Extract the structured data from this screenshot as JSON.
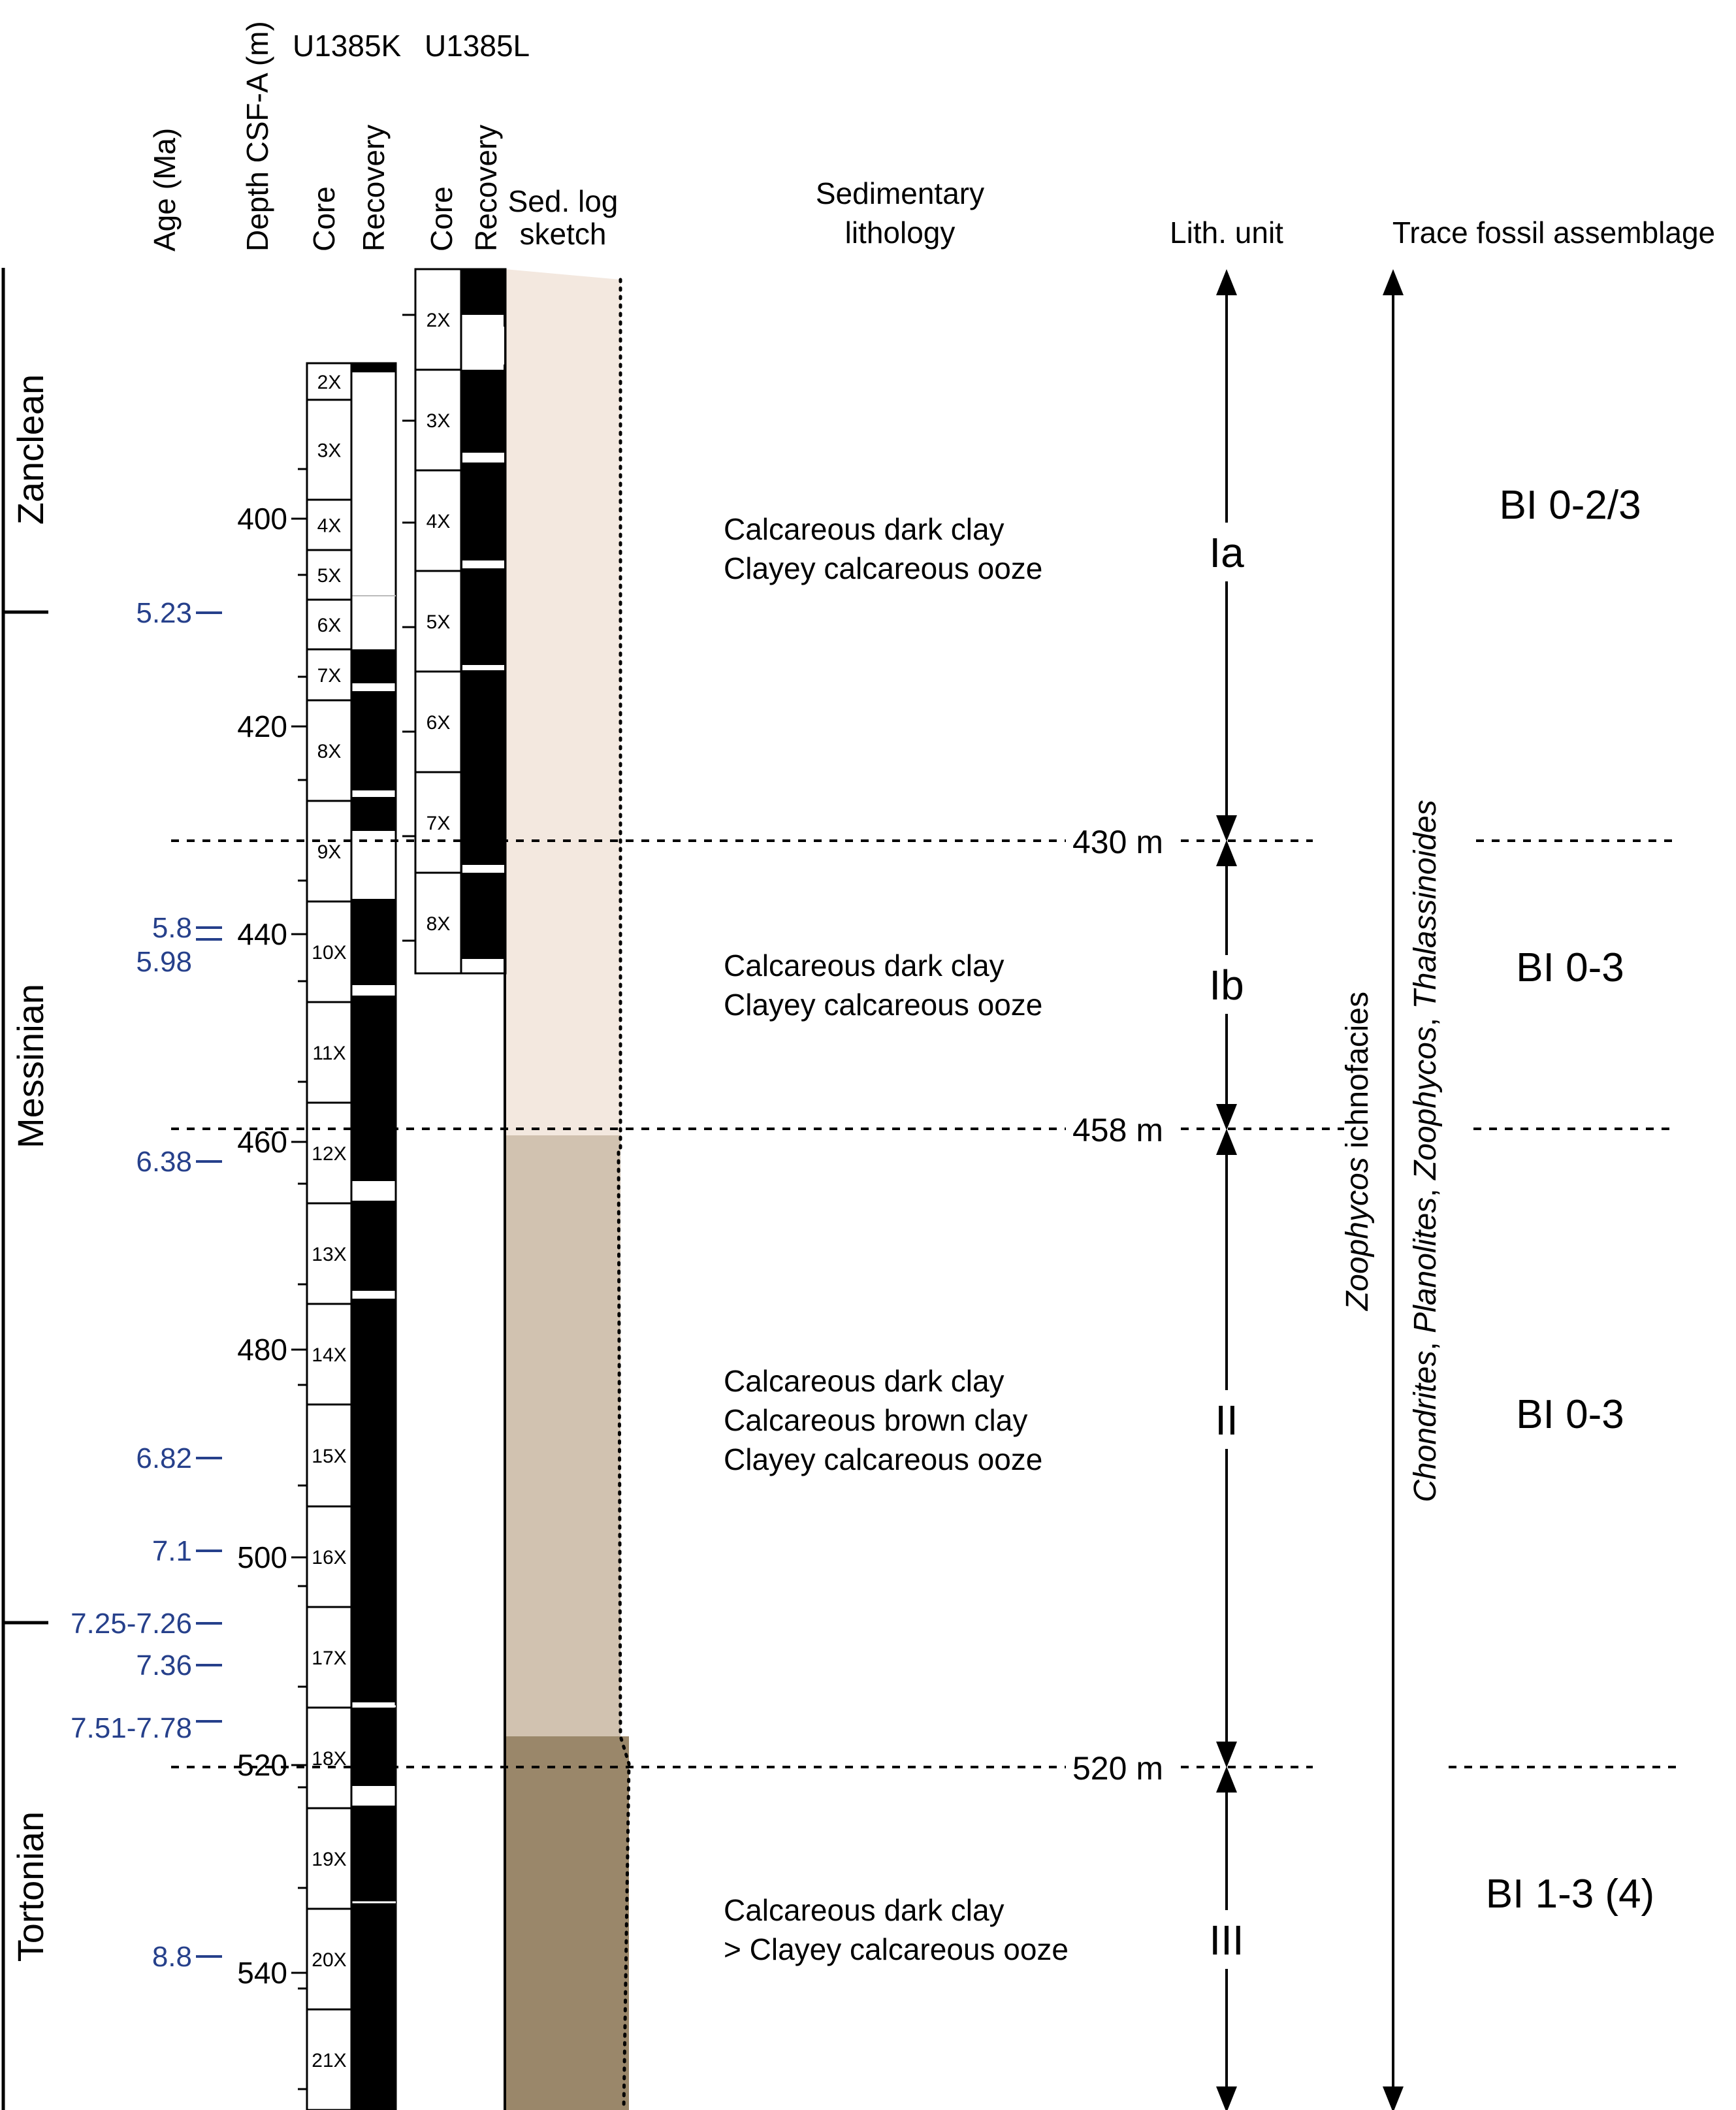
{
  "headers": {
    "age": "Age (Ma)",
    "depth": "Depth CSF-A (m)",
    "hole_k": "U1385K",
    "hole_l": "U1385L",
    "core": "Core",
    "recovery": "Recovery",
    "sedlog_line1": "Sed. log",
    "sedlog_line2": "sketch",
    "lithology_line1": "Sedimentary",
    "lithology_line2": "lithology",
    "lith_unit": "Lith. unit",
    "trace_fossil": "Trace fossil assemblage"
  },
  "stages": [
    "Zanclean",
    "Messinian",
    "Tortonian"
  ],
  "depth_ticks": [
    "400",
    "420",
    "440",
    "460",
    "480",
    "500",
    "520",
    "540"
  ],
  "age_labels": [
    "5.23",
    "5.8",
    "5.98",
    "6.38",
    "6.82",
    "7.1",
    "7.25-7.26",
    "7.36",
    "7.51-7.78",
    "8.8"
  ],
  "cores_k": [
    "2X",
    "3X",
    "4X",
    "5X",
    "6X",
    "7X",
    "8X",
    "9X",
    "10X",
    "11X",
    "12X",
    "13X",
    "14X",
    "15X",
    "16X",
    "17X",
    "18X",
    "19X",
    "20X",
    "21X"
  ],
  "cores_l": [
    "2X",
    "3X",
    "4X",
    "5X",
    "6X",
    "7X",
    "8X"
  ],
  "boundaries": [
    "430 m",
    "458 m",
    "520 m"
  ],
  "lithology": [
    [
      "Calcareous dark clay",
      "Clayey calcareous ooze"
    ],
    [
      "Calcareous dark clay",
      "Clayey calcareous ooze"
    ],
    [
      "Calcareous dark clay",
      "Calcareous brown clay",
      "Clayey calcareous ooze"
    ],
    [
      "Calcareous dark clay",
      "> Clayey calcareous ooze"
    ]
  ],
  "units": [
    "Ia",
    "Ib",
    "II",
    "III"
  ],
  "ichnofacies": {
    "genus": "Zoophycos",
    "suffix": " ichnofacies",
    "g1": "Chondrites",
    "g2": "Planolites",
    "g3": "Zoophycos",
    "g4": "Thalassinoides",
    "sep": ", "
  },
  "bioturbation": [
    "BI 0-2/3",
    "BI 0-3",
    "BI 0-3",
    "BI 1-3 (4)"
  ],
  "colors": {
    "age_blue": "#26408b",
    "sed_unit1": "#f3e8df",
    "sed_unit2": "#d1c2b0",
    "sed_unit3": "#9a876a"
  }
}
